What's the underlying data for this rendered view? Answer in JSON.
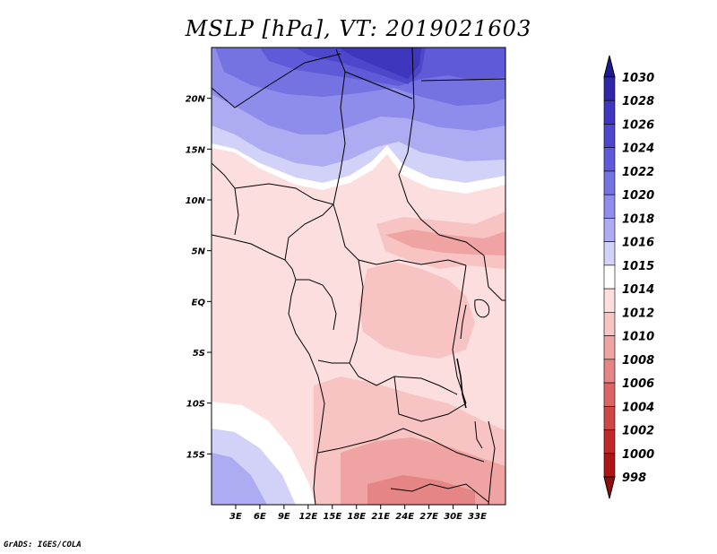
{
  "title": "MSLP [hPa], VT: 2019021603",
  "credit": "GrADS: IGES/COLA",
  "map": {
    "lon_range": [
      0,
      36.5
    ],
    "lat_range": [
      -20,
      25
    ],
    "lat_ticks": [
      {
        "value": 20,
        "label": "20N"
      },
      {
        "value": 15,
        "label": "15N"
      },
      {
        "value": 10,
        "label": "10N"
      },
      {
        "value": 5,
        "label": "5N"
      },
      {
        "value": 0,
        "label": "EQ"
      },
      {
        "value": -5,
        "label": "5S"
      },
      {
        "value": -10,
        "label": "10S"
      },
      {
        "value": -15,
        "label": "15S"
      }
    ],
    "lon_ticks": [
      {
        "value": 3,
        "label": "3E"
      },
      {
        "value": 6,
        "label": "6E"
      },
      {
        "value": 9,
        "label": "9E"
      },
      {
        "value": 12,
        "label": "12E"
      },
      {
        "value": 15,
        "label": "15E"
      },
      {
        "value": 18,
        "label": "18E"
      },
      {
        "value": 21,
        "label": "21E"
      },
      {
        "value": 24,
        "label": "24E"
      },
      {
        "value": 27,
        "label": "27E"
      },
      {
        "value": 30,
        "label": "30E"
      },
      {
        "value": 33,
        "label": "33E"
      }
    ]
  },
  "colorbar": {
    "levels": [
      "1030",
      "1028",
      "1026",
      "1024",
      "1022",
      "1020",
      "1018",
      "1016",
      "1015",
      "1014",
      "1012",
      "1010",
      "1008",
      "1006",
      "1004",
      "1002",
      "1000",
      "998"
    ],
    "colors": [
      "#1f1a8f",
      "#2e27a8",
      "#3e36bd",
      "#4d47cc",
      "#5f5bd8",
      "#7572e2",
      "#8f8deb",
      "#adacf2",
      "#d2d2f8",
      "#ffffff",
      "#fcdede",
      "#f7c3c3",
      "#efa3a3",
      "#e58585",
      "#db6565",
      "#cf4646",
      "#c22a2a",
      "#ad1616",
      "#8f0f0f"
    ]
  }
}
